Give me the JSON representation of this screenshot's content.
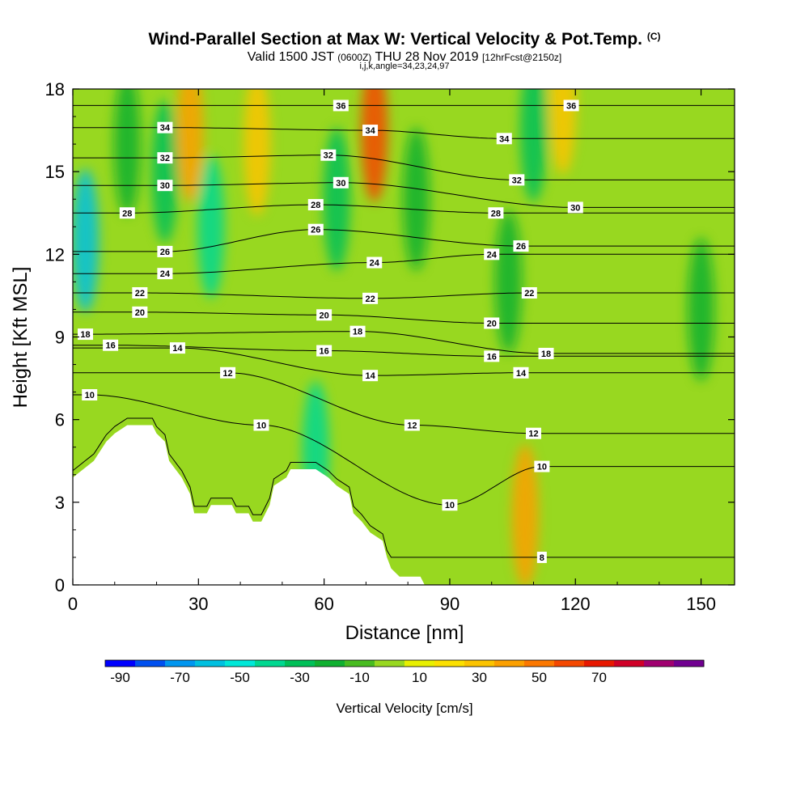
{
  "title": {
    "main": "Wind-Parallel Section at Max W: Vertical Velocity & Pot.Temp.",
    "copyright": "(C)",
    "line2_a": "Valid 1500 JST",
    "line2_b": "(0600Z)",
    "line2_c": "THU 28 Nov 2019",
    "line2_d": "[12hrFcst@2150z]",
    "line3": "i,j,k,angle=34,23,24,97"
  },
  "chart_data": {
    "type": "heatmap",
    "xlabel": "Distance [nm]",
    "ylabel": "Height [Kft MSL]",
    "xlim": [
      0,
      158
    ],
    "ylim": [
      0,
      18
    ],
    "xticks": [
      0,
      30,
      60,
      90,
      120,
      150
    ],
    "yticks": [
      0,
      3,
      6,
      9,
      12,
      15,
      18
    ],
    "terrain_top_kft": [
      [
        0,
        3.9
      ],
      [
        5,
        4.5
      ],
      [
        8,
        5.2
      ],
      [
        10,
        5.5
      ],
      [
        13,
        5.8
      ],
      [
        19,
        5.8
      ],
      [
        20,
        5.5
      ],
      [
        22,
        5.2
      ],
      [
        23,
        4.5
      ],
      [
        26,
        3.9
      ],
      [
        28,
        3.3
      ],
      [
        29,
        2.6
      ],
      [
        32,
        2.6
      ],
      [
        33,
        2.9
      ],
      [
        38,
        2.9
      ],
      [
        39,
        2.6
      ],
      [
        42,
        2.6
      ],
      [
        43,
        2.3
      ],
      [
        45,
        2.3
      ],
      [
        46,
        2.6
      ],
      [
        47,
        2.9
      ],
      [
        48,
        3.6
      ],
      [
        51,
        3.9
      ],
      [
        52,
        4.2
      ],
      [
        58,
        4.2
      ],
      [
        61,
        3.9
      ],
      [
        63,
        3.6
      ],
      [
        66,
        3.3
      ],
      [
        67,
        2.6
      ],
      [
        69,
        2.3
      ],
      [
        71,
        1.9
      ],
      [
        74,
        1.6
      ],
      [
        75,
        1.0
      ],
      [
        76,
        0.6
      ],
      [
        78,
        0.3
      ],
      [
        83,
        0.3
      ],
      [
        84,
        0.0
      ]
    ],
    "fill_colorbar": {
      "title": "Vertical Velocity [cm/s]",
      "tick_labels": [
        "-90",
        "-70",
        "-50",
        "-30",
        "-10",
        "10",
        "30",
        "50",
        "70"
      ],
      "colors": [
        "#0000ff",
        "#0050f0",
        "#0096f0",
        "#00c0e0",
        "#00e8d8",
        "#00d890",
        "#00c058",
        "#10b030",
        "#48bc20",
        "#98d820",
        "#e8f000",
        "#fce000",
        "#fcc400",
        "#fca000",
        "#fc7800",
        "#f44800",
        "#e81800",
        "#d00028",
        "#a00070",
        "#700090"
      ]
    },
    "velocity_features": [
      {
        "x": 3,
        "y": 12.5,
        "w": -60
      },
      {
        "x": 13,
        "y": 16,
        "w": -20
      },
      {
        "x": 22,
        "y": 15,
        "w": -30
      },
      {
        "x": 28,
        "y": 16.5,
        "w": 45
      },
      {
        "x": 33,
        "y": 13,
        "w": -35
      },
      {
        "x": 44,
        "y": 16,
        "w": 35
      },
      {
        "x": 58,
        "y": 4.8,
        "w": -40
      },
      {
        "x": 63,
        "y": 14,
        "w": -25
      },
      {
        "x": 72,
        "y": 16.5,
        "w": 65
      },
      {
        "x": 82,
        "y": 14,
        "w": -20
      },
      {
        "x": 104,
        "y": 11,
        "w": -20
      },
      {
        "x": 108,
        "y": 2.5,
        "w": 40
      },
      {
        "x": 110,
        "y": 16.5,
        "w": -25
      },
      {
        "x": 117,
        "y": 17.5,
        "w": 30
      },
      {
        "x": 150,
        "y": 10,
        "w": -20
      }
    ],
    "theta_contour_labels": [
      {
        "label": "36",
        "x": 64,
        "y": 17.4
      },
      {
        "label": "36",
        "x": 119,
        "y": 17.4
      },
      {
        "label": "34",
        "x": 22,
        "y": 16.6
      },
      {
        "label": "34",
        "x": 71,
        "y": 16.5
      },
      {
        "label": "34",
        "x": 103,
        "y": 16.2
      },
      {
        "label": "32",
        "x": 22,
        "y": 15.5
      },
      {
        "label": "32",
        "x": 61,
        "y": 15.6
      },
      {
        "label": "32",
        "x": 106,
        "y": 14.7
      },
      {
        "label": "30",
        "x": 22,
        "y": 14.5
      },
      {
        "label": "30",
        "x": 64,
        "y": 14.6
      },
      {
        "label": "30",
        "x": 120,
        "y": 13.7
      },
      {
        "label": "28",
        "x": 13,
        "y": 13.5
      },
      {
        "label": "28",
        "x": 58,
        "y": 13.8
      },
      {
        "label": "28",
        "x": 101,
        "y": 13.5
      },
      {
        "label": "26",
        "x": 22,
        "y": 12.1
      },
      {
        "label": "26",
        "x": 58,
        "y": 12.9
      },
      {
        "label": "26",
        "x": 107,
        "y": 12.3
      },
      {
        "label": "24",
        "x": 22,
        "y": 11.3
      },
      {
        "label": "24",
        "x": 72,
        "y": 11.7
      },
      {
        "label": "24",
        "x": 100,
        "y": 12.0
      },
      {
        "label": "22",
        "x": 16,
        "y": 10.6
      },
      {
        "label": "22",
        "x": 71,
        "y": 10.4
      },
      {
        "label": "22",
        "x": 109,
        "y": 10.6
      },
      {
        "label": "20",
        "x": 16,
        "y": 9.9
      },
      {
        "label": "20",
        "x": 60,
        "y": 9.8
      },
      {
        "label": "20",
        "x": 100,
        "y": 9.5
      },
      {
        "label": "18",
        "x": 3,
        "y": 9.1
      },
      {
        "label": "18",
        "x": 68,
        "y": 9.2
      },
      {
        "label": "18",
        "x": 113,
        "y": 8.4
      },
      {
        "label": "16",
        "x": 9,
        "y": 8.7
      },
      {
        "label": "16",
        "x": 60,
        "y": 8.5
      },
      {
        "label": "16",
        "x": 100,
        "y": 8.3
      },
      {
        "label": "14",
        "x": 25,
        "y": 8.6
      },
      {
        "label": "14",
        "x": 71,
        "y": 7.6
      },
      {
        "label": "14",
        "x": 107,
        "y": 7.7
      },
      {
        "label": "12",
        "x": 37,
        "y": 7.7
      },
      {
        "label": "12",
        "x": 81,
        "y": 5.8
      },
      {
        "label": "12",
        "x": 110,
        "y": 5.5
      },
      {
        "label": "10",
        "x": 4,
        "y": 6.9
      },
      {
        "label": "10",
        "x": 45,
        "y": 5.8
      },
      {
        "label": "10",
        "x": 90,
        "y": 2.9
      },
      {
        "label": "10",
        "x": 112,
        "y": 4.3
      },
      {
        "label": "8",
        "x": 112,
        "y": 1.0
      }
    ]
  }
}
